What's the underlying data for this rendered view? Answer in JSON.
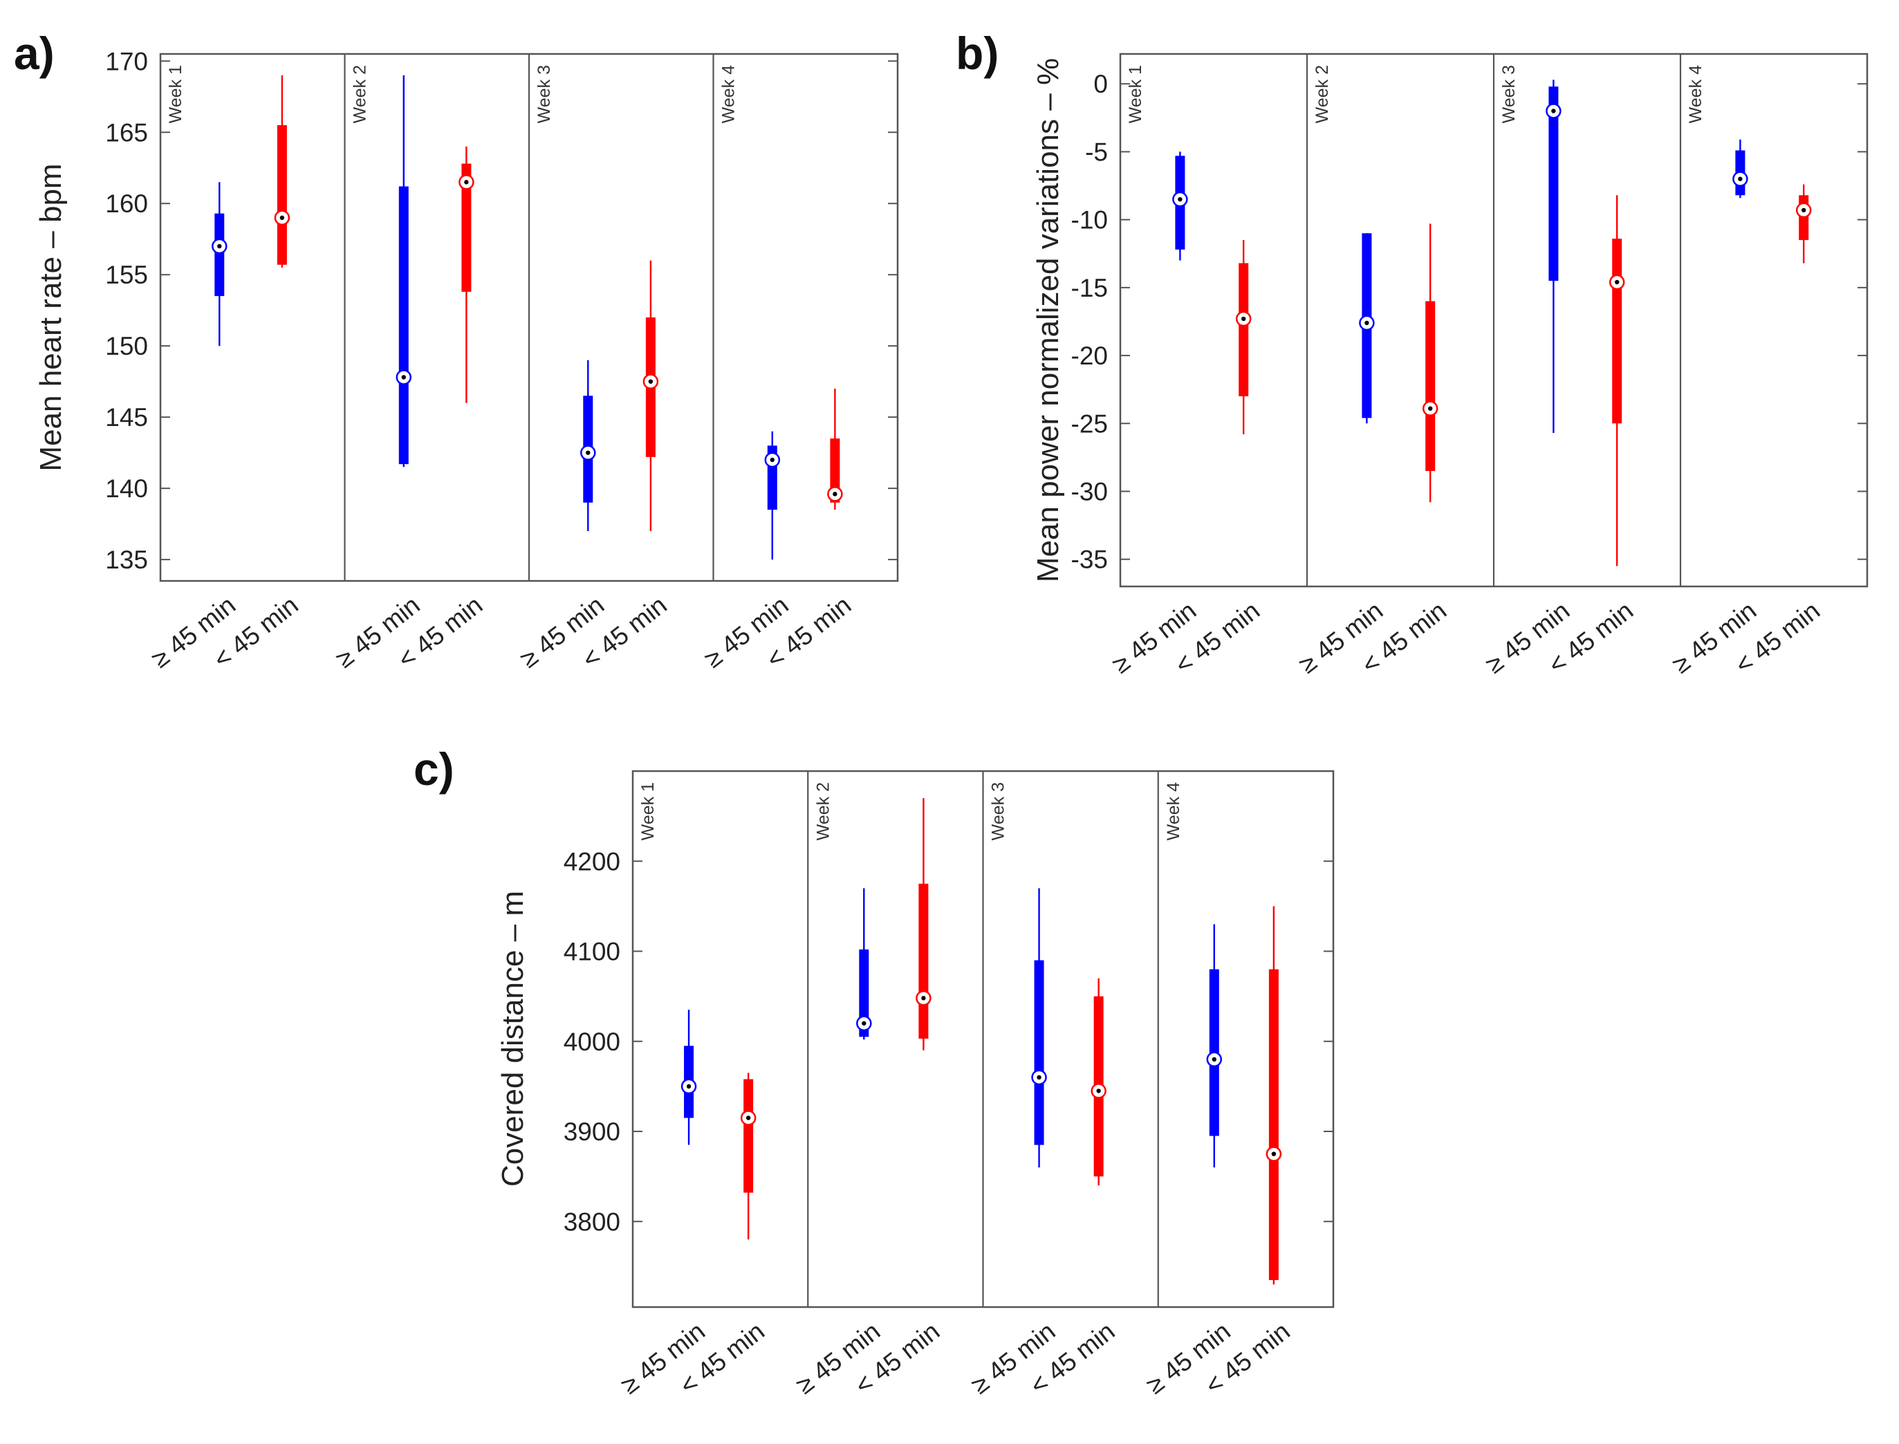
{
  "colors": {
    "group1": "#0000ff",
    "group2": "#ff0000",
    "frame": "#555555",
    "text": "#222222"
  },
  "groups": [
    "≥ 45 min",
    "< 45 min"
  ],
  "weeks": [
    "Week 1",
    "Week 2",
    "Week 3",
    "Week 4"
  ],
  "chart_data": [
    {
      "type": "box",
      "panel_label": "a)",
      "ylabel": "Mean heart rate – bpm",
      "yticks": [
        135,
        140,
        145,
        150,
        155,
        160,
        165,
        170
      ],
      "ylim": [
        133.5,
        170.5
      ],
      "categories": [
        "≥ 45 min",
        "< 45 min",
        "≥ 45 min",
        "< 45 min",
        "≥ 45 min",
        "< 45 min",
        "≥ 45 min",
        "< 45 min"
      ],
      "boxes": [
        {
          "week": "Week 1",
          "group": "≥ 45 min",
          "min": 150,
          "q1": 153.5,
          "median": 157,
          "q3": 159.3,
          "max": 161.5
        },
        {
          "week": "Week 1",
          "group": "< 45 min",
          "min": 155.5,
          "q1": 155.7,
          "median": 159,
          "q3": 165.5,
          "max": 169
        },
        {
          "week": "Week 2",
          "group": "≥ 45 min",
          "min": 141.5,
          "q1": 141.7,
          "median": 147.8,
          "q3": 161.2,
          "max": 169
        },
        {
          "week": "Week 2",
          "group": "< 45 min",
          "min": 146,
          "q1": 153.8,
          "median": 161.5,
          "q3": 162.8,
          "max": 164
        },
        {
          "week": "Week 3",
          "group": "≥ 45 min",
          "min": 137,
          "q1": 139,
          "median": 142.5,
          "q3": 146.5,
          "max": 149
        },
        {
          "week": "Week 3",
          "group": "< 45 min",
          "min": 137,
          "q1": 142.2,
          "median": 147.5,
          "q3": 152,
          "max": 156
        },
        {
          "week": "Week 4",
          "group": "≥ 45 min",
          "min": 135,
          "q1": 138.5,
          "median": 142,
          "q3": 143,
          "max": 144
        },
        {
          "week": "Week 4",
          "group": "< 45 min",
          "min": 138.5,
          "q1": 139,
          "median": 139.6,
          "q3": 143.5,
          "max": 147
        }
      ]
    },
    {
      "type": "box",
      "panel_label": "b)",
      "ylabel": "Mean power normalized variations – %",
      "yticks": [
        -35,
        -30,
        -25,
        -20,
        -15,
        -10,
        -5,
        0
      ],
      "ylim": [
        -37,
        2.2
      ],
      "categories": [
        "≥ 45 min",
        "< 45 min",
        "≥ 45 min",
        "< 45 min",
        "≥ 45 min",
        "< 45 min",
        "≥ 45 min",
        "< 45 min"
      ],
      "boxes": [
        {
          "week": "Week 1",
          "group": "≥ 45 min",
          "min": -13,
          "q1": -12.2,
          "median": -8.5,
          "q3": -5.3,
          "max": -5
        },
        {
          "week": "Week 1",
          "group": "< 45 min",
          "min": -25.8,
          "q1": -23,
          "median": -17.3,
          "q3": -13.2,
          "max": -11.5
        },
        {
          "week": "Week 2",
          "group": "≥ 45 min",
          "min": -25,
          "q1": -24.6,
          "median": -17.6,
          "q3": -11,
          "max": -11
        },
        {
          "week": "Week 2",
          "group": "< 45 min",
          "min": -30.8,
          "q1": -28.5,
          "median": -23.9,
          "q3": -16,
          "max": -10.3
        },
        {
          "week": "Week 3",
          "group": "≥ 45 min",
          "min": -25.7,
          "q1": -14.5,
          "median": -2,
          "q3": -0.2,
          "max": 0.3
        },
        {
          "week": "Week 3",
          "group": "< 45 min",
          "min": -35.5,
          "q1": -25,
          "median": -14.6,
          "q3": -11.4,
          "max": -8.2
        },
        {
          "week": "Week 4",
          "group": "≥ 45 min",
          "min": -8.4,
          "q1": -8.2,
          "median": -7,
          "q3": -4.9,
          "max": -4.1
        },
        {
          "week": "Week 4",
          "group": "< 45 min",
          "min": -13.2,
          "q1": -11.5,
          "median": -9.3,
          "q3": -8.2,
          "max": -7.4
        }
      ]
    },
    {
      "type": "box",
      "panel_label": "c)",
      "ylabel": "Covered distance – m",
      "yticks": [
        3800,
        3900,
        4000,
        4100,
        4200
      ],
      "ylim": [
        3705,
        4300
      ],
      "categories": [
        "≥ 45 min",
        "< 45 min",
        "≥ 45 min",
        "< 45 min",
        "≥ 45 min",
        "< 45 min",
        "≥ 45 min",
        "< 45 min"
      ],
      "boxes": [
        {
          "week": "Week 1",
          "group": "≥ 45 min",
          "min": 3885,
          "q1": 3915,
          "median": 3950,
          "q3": 3995,
          "max": 4035
        },
        {
          "week": "Week 1",
          "group": "< 45 min",
          "min": 3780,
          "q1": 3832,
          "median": 3915,
          "q3": 3958,
          "max": 3965
        },
        {
          "week": "Week 2",
          "group": "≥ 45 min",
          "min": 4002,
          "q1": 4005,
          "median": 4020,
          "q3": 4102,
          "max": 4170
        },
        {
          "week": "Week 2",
          "group": "< 45 min",
          "min": 3990,
          "q1": 4003,
          "median": 4048,
          "q3": 4175,
          "max": 4270
        },
        {
          "week": "Week 3",
          "group": "≥ 45 min",
          "min": 3860,
          "q1": 3885,
          "median": 3960,
          "q3": 4090,
          "max": 4170
        },
        {
          "week": "Week 3",
          "group": "< 45 min",
          "min": 3840,
          "q1": 3850,
          "median": 3945,
          "q3": 4050,
          "max": 4070
        },
        {
          "week": "Week 4",
          "group": "≥ 45 min",
          "min": 3860,
          "q1": 3895,
          "median": 3980,
          "q3": 4080,
          "max": 4130
        },
        {
          "week": "Week 4",
          "group": "< 45 min",
          "min": 3730,
          "q1": 3735,
          "median": 3875,
          "q3": 4080,
          "max": 4150
        }
      ]
    }
  ]
}
